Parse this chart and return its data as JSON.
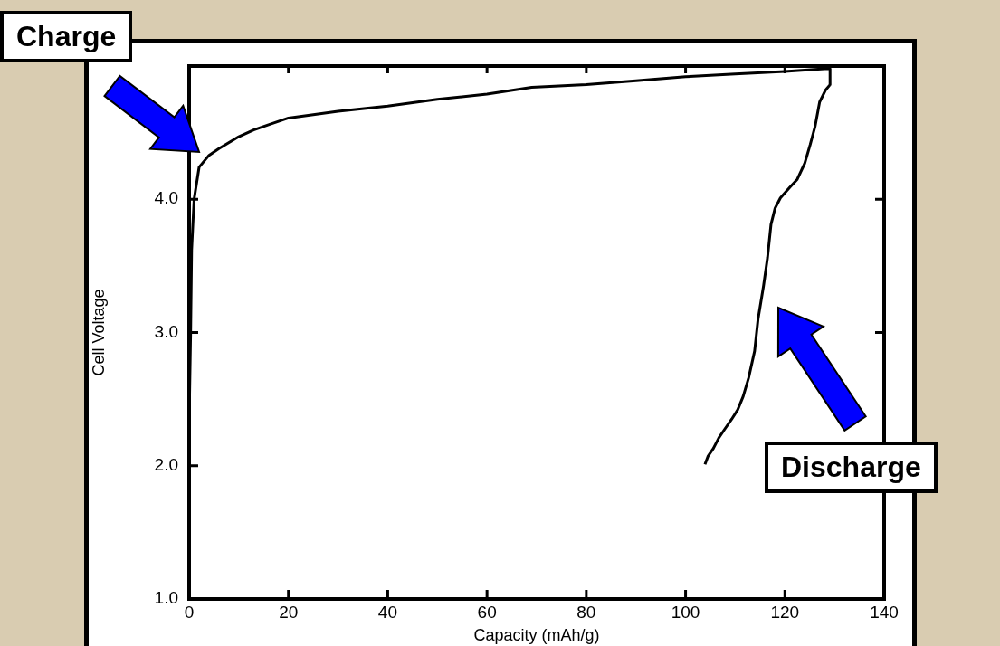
{
  "chart_data": {
    "type": "line",
    "xlabel": "Capacity (mAh/g)",
    "ylabel": "Cell Voltage",
    "xlim": [
      0,
      140
    ],
    "xticks": [
      0,
      20,
      40,
      60,
      80,
      100,
      120,
      140
    ],
    "ylim": [
      1,
      5
    ],
    "yticks": [
      {
        "value": 1,
        "label": "1.0"
      },
      {
        "value": 2,
        "label": "2.0"
      },
      {
        "value": 3,
        "label": "3.0"
      },
      {
        "value": 4,
        "label": "4.0"
      }
    ],
    "grid": false,
    "legend": false,
    "marker": "none",
    "line_style": "solid",
    "annotations": [
      "Charge",
      "Discharge"
    ],
    "series": [
      {
        "color": "#000000",
        "x": [
          0,
          0.3,
          0.5,
          1,
          2,
          4,
          6,
          10,
          13,
          16,
          20,
          30,
          40,
          50,
          60,
          69,
          80,
          90,
          100,
          110,
          120,
          128,
          129.1
        ],
        "values": [
          2.33,
          3.0,
          3.62,
          4.0,
          4.24,
          4.33,
          4.38,
          4.47,
          4.52,
          4.56,
          4.61,
          4.66,
          4.7,
          4.75,
          4.79,
          4.84,
          4.86,
          4.89,
          4.92,
          4.94,
          4.96,
          4.98,
          4.98
        ]
      },
      {
        "color": "#000000",
        "x": [
          129.1,
          129.1,
          128.2,
          127.0,
          126.1,
          125.1,
          124.0,
          122.5,
          121.0,
          119.1,
          118.0,
          117.2,
          116.5,
          115.7,
          114.6,
          113.9,
          112.7,
          111.6,
          110.5,
          109.3,
          107.8,
          106.7,
          105.6,
          104.5,
          103.9
        ],
        "values": [
          4.98,
          4.86,
          4.82,
          4.73,
          4.55,
          4.41,
          4.27,
          4.15,
          4.09,
          4.01,
          3.93,
          3.81,
          3.56,
          3.35,
          3.1,
          2.86,
          2.66,
          2.52,
          2.42,
          2.35,
          2.27,
          2.21,
          2.13,
          2.07,
          2.01
        ]
      }
    ]
  }
}
